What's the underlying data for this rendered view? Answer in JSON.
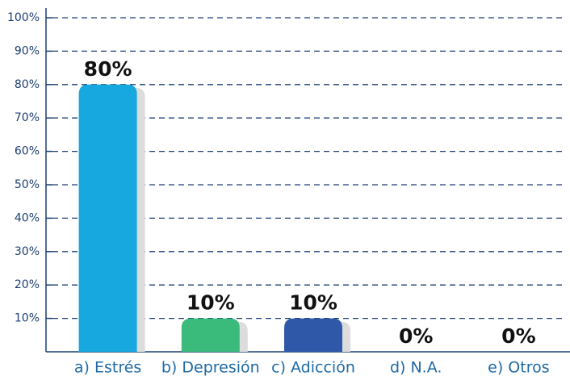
{
  "chart_data": {
    "type": "bar",
    "categories": [
      "a) Estrés",
      "b) Depresión",
      "c) Adicción",
      "d) N.A.",
      "e) Otros"
    ],
    "values": [
      80,
      10,
      10,
      0,
      0
    ],
    "value_labels": [
      "80%",
      "10%",
      "10%",
      "0%",
      "0%"
    ],
    "colors": [
      "#16a8de",
      "#3aba7b",
      "#2f58a8",
      "#16a8de",
      "#3aba7b"
    ],
    "ylim": [
      0,
      100
    ],
    "yticks": [
      {
        "value": 10,
        "label": "10%"
      },
      {
        "value": 20,
        "label": "20%"
      },
      {
        "value": 30,
        "label": "30%"
      },
      {
        "value": 40,
        "label": "40%"
      },
      {
        "value": 50,
        "label": "50%"
      },
      {
        "value": 60,
        "label": "60%"
      },
      {
        "value": 70,
        "label": "70%"
      },
      {
        "value": 80,
        "label": "80%"
      },
      {
        "value": 90,
        "label": "90%"
      },
      {
        "value": 100,
        "label": "100%"
      }
    ],
    "grid": true
  }
}
